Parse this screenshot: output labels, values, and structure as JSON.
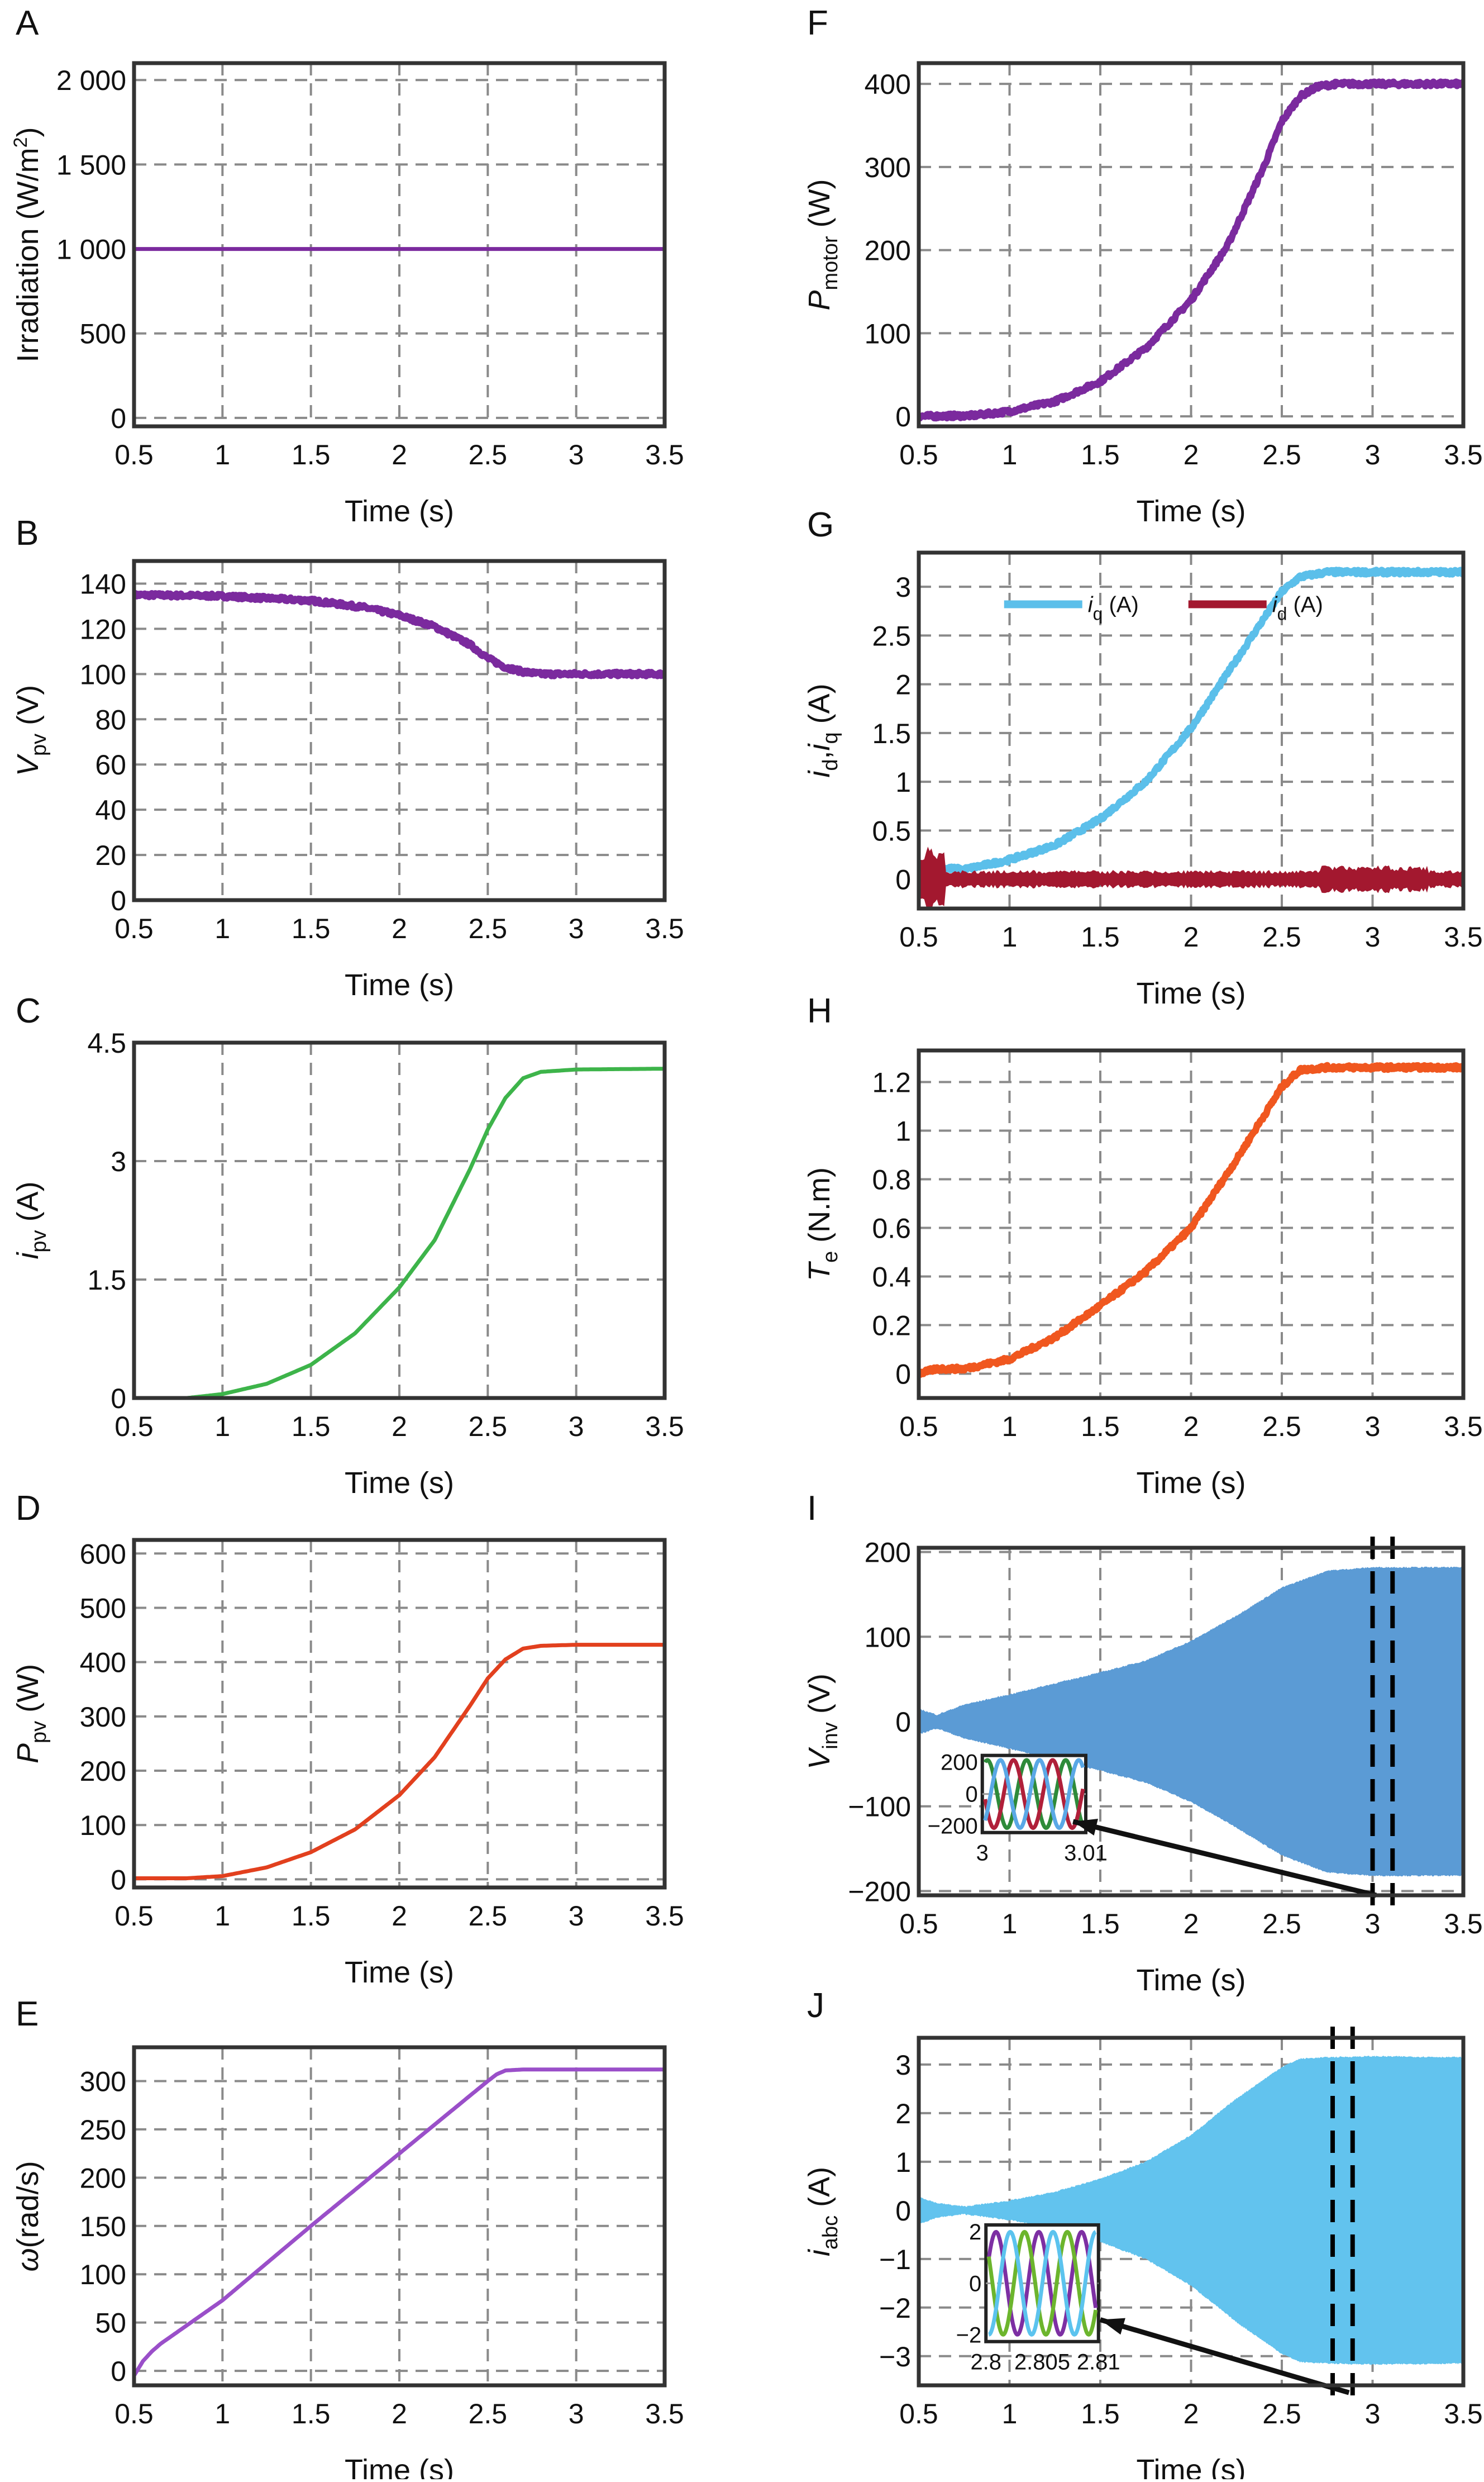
{
  "chart_data": [
    {
      "panel": "A",
      "type": "line",
      "xlim": [
        0.5,
        3.5
      ],
      "ylim": [
        -50,
        2100
      ],
      "grid": true,
      "xticks": [
        0.5,
        1,
        1.5,
        2,
        2.5,
        3,
        3.5
      ],
      "xtick_labels": [
        "0.5",
        "1",
        "1.5",
        "2",
        "2.5",
        "3",
        "3.5"
      ],
      "yticks": [
        0,
        500,
        1000,
        1500,
        2000
      ],
      "ytick_labels": [
        "0",
        "500",
        "1 000",
        "1 500",
        "2 000"
      ],
      "xlabel": "Time (s)",
      "ylabel": [
        {
          "t": "Irradiation (W/m"
        },
        {
          "t": "2",
          "sup": true
        },
        {
          "t": ")"
        }
      ],
      "series": [
        {
          "color": "#7b2a9e",
          "x": [
            0.5,
            3.5
          ],
          "y": [
            1000,
            1000
          ]
        }
      ]
    },
    {
      "panel": "B",
      "type": "line",
      "xlim": [
        0.5,
        3.5
      ],
      "ylim": [
        0,
        150
      ],
      "grid": true,
      "xticks": [
        0.5,
        1,
        1.5,
        2,
        2.5,
        3,
        3.5
      ],
      "xtick_labels": [
        "0.5",
        "1",
        "1.5",
        "2",
        "2.5",
        "3",
        "3.5"
      ],
      "yticks": [
        0,
        20,
        40,
        60,
        80,
        100,
        120,
        140
      ],
      "ytick_labels": [
        "0",
        "20",
        "40",
        "60",
        "80",
        "100",
        "120",
        "140"
      ],
      "xlabel": "Time (s)",
      "ylabel": [
        {
          "t": "V",
          "it": true
        },
        {
          "t": "pv",
          "sub": true
        },
        {
          "t": " (V)"
        }
      ],
      "series": [
        {
          "color": "#7b2a9e",
          "noisy": true,
          "x": [
            0.5,
            1,
            1.5,
            1.8,
            2,
            2.2,
            2.4,
            2.5,
            2.6,
            2.7,
            2.8,
            3,
            3.5
          ],
          "y": [
            135,
            134.5,
            132.5,
            129.5,
            126,
            121,
            113,
            107,
            103,
            101,
            100,
            100,
            100
          ]
        }
      ]
    },
    {
      "panel": "C",
      "type": "line",
      "xlim": [
        0.5,
        3.5
      ],
      "ylim": [
        0,
        4.5
      ],
      "grid": true,
      "xticks": [
        0.5,
        1,
        1.5,
        2,
        2.5,
        3,
        3.5
      ],
      "xtick_labels": [
        "0.5",
        "1",
        "1.5",
        "2",
        "2.5",
        "3",
        "3.5"
      ],
      "yticks": [
        0,
        1.5,
        3,
        4.5
      ],
      "ytick_labels": [
        "0",
        "1.5",
        "3",
        "4.5"
      ],
      "xlabel": "Time (s)",
      "ylabel": [
        {
          "t": "i",
          "it": true
        },
        {
          "t": "pv",
          "sub": true
        },
        {
          "t": " (A)"
        }
      ],
      "series": [
        {
          "color": "#3db44a",
          "x": [
            0.5,
            0.8,
            1,
            1.25,
            1.5,
            1.75,
            2,
            2.2,
            2.4,
            2.5,
            2.6,
            2.7,
            2.8,
            3,
            3.5
          ],
          "y": [
            0,
            0,
            0.05,
            0.18,
            0.42,
            0.82,
            1.4,
            2.0,
            2.9,
            3.4,
            3.8,
            4.05,
            4.13,
            4.16,
            4.17
          ]
        }
      ]
    },
    {
      "panel": "D",
      "type": "line",
      "xlim": [
        0.5,
        3.5
      ],
      "ylim": [
        -15,
        625
      ],
      "grid": true,
      "xticks": [
        0.5,
        1,
        1.5,
        2,
        2.5,
        3,
        3.5
      ],
      "xtick_labels": [
        "0.5",
        "1",
        "1.5",
        "2",
        "2.5",
        "3",
        "3.5"
      ],
      "yticks": [
        0,
        100,
        200,
        300,
        400,
        500,
        600
      ],
      "ytick_labels": [
        "0",
        "100",
        "200",
        "300",
        "400",
        "500",
        "600"
      ],
      "xlabel": "Time (s)",
      "ylabel": [
        {
          "t": "P",
          "it": true
        },
        {
          "t": "pv",
          "sub": true
        },
        {
          "t": " (W)"
        }
      ],
      "series": [
        {
          "color": "#e2401e",
          "x": [
            0.5,
            0.8,
            1,
            1.25,
            1.5,
            1.75,
            2,
            2.2,
            2.4,
            2.5,
            2.6,
            2.7,
            2.8,
            3,
            3.5
          ],
          "y": [
            2,
            2,
            6,
            22,
            50,
            92,
            155,
            225,
            320,
            370,
            405,
            425,
            430,
            432,
            432
          ]
        }
      ]
    },
    {
      "panel": "E",
      "type": "line",
      "xlim": [
        0.5,
        3.5
      ],
      "ylim": [
        -15,
        335
      ],
      "grid": true,
      "xticks": [
        0.5,
        1,
        1.5,
        2,
        2.5,
        3,
        3.5
      ],
      "xtick_labels": [
        "0.5",
        "1",
        "1.5",
        "2",
        "2.5",
        "3",
        "3.5"
      ],
      "yticks": [
        0,
        50,
        100,
        150,
        200,
        250,
        300
      ],
      "ytick_labels": [
        "0",
        "50",
        "100",
        "150",
        "200",
        "250",
        "300"
      ],
      "xlabel": "Time (s)",
      "ylabel": [
        {
          "t": "ω",
          "it": true
        },
        {
          "t": "(rad/s)"
        }
      ],
      "series": [
        {
          "color": "#9a4fc9",
          "x": [
            0.5,
            0.55,
            0.6,
            0.65,
            1,
            1.5,
            2,
            2.5,
            2.55,
            2.6,
            2.7,
            3,
            3.5
          ],
          "y": [
            -5,
            10,
            20,
            28,
            73,
            150,
            225,
            300,
            307,
            311,
            312,
            312,
            312
          ]
        }
      ]
    },
    {
      "panel": "F",
      "type": "line",
      "xlim": [
        0.5,
        3.5
      ],
      "ylim": [
        -12,
        425
      ],
      "grid": true,
      "xticks": [
        0.5,
        1,
        1.5,
        2,
        2.5,
        3,
        3.5
      ],
      "xtick_labels": [
        "0.5",
        "1",
        "1.5",
        "2",
        "2.5",
        "3",
        "3.5"
      ],
      "yticks": [
        0,
        100,
        200,
        300,
        400
      ],
      "ytick_labels": [
        "0",
        "100",
        "200",
        "300",
        "400"
      ],
      "xlabel": "Time (s)",
      "ylabel": [
        {
          "t": "P",
          "it": true
        },
        {
          "t": "motor",
          "sub": true
        },
        {
          "t": " (W)"
        }
      ],
      "series": [
        {
          "color": "#7b2a9e",
          "noisy": true,
          "x": [
            0.5,
            0.8,
            1,
            1.25,
            1.5,
            1.75,
            2,
            2.2,
            2.4,
            2.5,
            2.6,
            2.7,
            2.8,
            3,
            3.5
          ],
          "y": [
            0,
            1,
            6,
            18,
            42,
            82,
            140,
            205,
            300,
            355,
            385,
            397,
            400,
            400,
            400
          ]
        }
      ]
    },
    {
      "panel": "G",
      "type": "line",
      "xlim": [
        0.5,
        3.5
      ],
      "ylim": [
        -0.3,
        3.35
      ],
      "grid": true,
      "xticks": [
        0.5,
        1,
        1.5,
        2,
        2.5,
        3,
        3.5
      ],
      "xtick_labels": [
        "0.5",
        "1",
        "1.5",
        "2",
        "2.5",
        "3",
        "3.5"
      ],
      "yticks": [
        0,
        0.5,
        1,
        1.5,
        2,
        2.5,
        3
      ],
      "ytick_labels": [
        "0",
        "0.5",
        "1",
        "1.5",
        "2",
        "2.5",
        "3"
      ],
      "xlabel": "Time (s)",
      "ylabel": [
        {
          "t": "i",
          "it": true
        },
        {
          "t": "d",
          "sub": true
        },
        {
          "t": ","
        },
        {
          "t": "i",
          "it": true
        },
        {
          "t": "q",
          "sub": true
        },
        {
          "t": " (A)"
        }
      ],
      "legend": {
        "position": "top-left",
        "entries": [
          {
            "label": "i",
            "sub": "q",
            "unit": " (A)",
            "color": "#5bbfea"
          },
          {
            "label": "i",
            "sub": "d",
            "unit": " (A)",
            "color": "#a3182f"
          }
        ]
      },
      "series": [
        {
          "name": "iq (A)",
          "color": "#5bbfea",
          "noisy": true,
          "x": [
            0.5,
            0.6,
            0.75,
            1,
            1.25,
            1.5,
            1.75,
            2,
            2.25,
            2.5,
            2.6,
            2.75,
            3,
            3.5
          ],
          "y": [
            0.15,
            0.12,
            0.1,
            0.2,
            0.35,
            0.62,
            1.0,
            1.55,
            2.25,
            2.95,
            3.1,
            3.15,
            3.15,
            3.15
          ]
        },
        {
          "name": "id (A)",
          "color": "#a3182f",
          "noisy": true,
          "band": 0.08,
          "x": [
            0.5,
            1,
            2,
            2.7,
            3,
            3.5
          ],
          "y": [
            0,
            0,
            0,
            0,
            0,
            0
          ]
        }
      ]
    },
    {
      "panel": "H",
      "type": "line",
      "xlim": [
        0.5,
        3.5
      ],
      "ylim": [
        -0.1,
        1.33
      ],
      "grid": true,
      "xticks": [
        0.5,
        1,
        1.5,
        2,
        2.5,
        3,
        3.5
      ],
      "xtick_labels": [
        "0.5",
        "1",
        "1.5",
        "2",
        "2.5",
        "3",
        "3.5"
      ],
      "yticks": [
        0,
        0.2,
        0.4,
        0.6,
        0.8,
        1,
        1.2
      ],
      "ytick_labels": [
        "0",
        "0.2",
        "0.4",
        "0.6",
        "0.8",
        "1",
        "1.2"
      ],
      "xlabel": "Time (s)",
      "ylabel": [
        {
          "t": "T",
          "it": true
        },
        {
          "t": "e",
          "sub": true
        },
        {
          "t": " (N.m)"
        }
      ],
      "series": [
        {
          "color": "#f0571f",
          "noisy": true,
          "x": [
            0.5,
            0.6,
            0.75,
            1,
            1.25,
            1.5,
            1.75,
            2,
            2.25,
            2.5,
            2.6,
            2.75,
            3,
            3.5
          ],
          "y": [
            0,
            0.02,
            0.02,
            0.06,
            0.15,
            0.28,
            0.42,
            0.6,
            0.88,
            1.18,
            1.25,
            1.26,
            1.26,
            1.26
          ]
        }
      ]
    },
    {
      "panel": "I",
      "type": "area",
      "xlim": [
        0.5,
        3.5
      ],
      "ylim": [
        -205,
        205
      ],
      "grid": true,
      "xticks": [
        0.5,
        1,
        1.5,
        2,
        2.5,
        3,
        3.5
      ],
      "xtick_labels": [
        "0.5",
        "1",
        "1.5",
        "2",
        "2.5",
        "3",
        "3.5"
      ],
      "yticks": [
        -200,
        -100,
        0,
        100,
        200
      ],
      "ytick_labels": [
        "−200",
        "−100",
        "0",
        "100",
        "200"
      ],
      "xlabel": "Time (s)",
      "ylabel": [
        {
          "t": "V",
          "it": true
        },
        {
          "t": "inv",
          "sub": true
        },
        {
          "t": " (V)"
        }
      ],
      "envelope": {
        "color": "#5b9bd5",
        "x": [
          0.5,
          0.6,
          0.75,
          1,
          1.25,
          1.5,
          1.75,
          2,
          2.25,
          2.5,
          2.75,
          3,
          3.5
        ],
        "amplitude": [
          15,
          8,
          20,
          32,
          45,
          58,
          72,
          95,
          125,
          158,
          178,
          182,
          182
        ]
      },
      "zoom_window": [
        3.0,
        3.01
      ],
      "inset": {
        "xtick_labels": [
          "3",
          "3.01"
        ],
        "ytick_labels": [
          "200",
          "0",
          "−200"
        ],
        "colors": [
          "#2e8b3a",
          "#b0203a",
          "#5aa8e6"
        ]
      }
    },
    {
      "panel": "J",
      "type": "area",
      "xlim": [
        0.5,
        3.5
      ],
      "ylim": [
        -3.6,
        3.55
      ],
      "grid": true,
      "xticks": [
        0.5,
        1,
        1.5,
        2,
        2.5,
        3,
        3.5
      ],
      "xtick_labels": [
        "0.5",
        "1",
        "1.5",
        "2",
        "2.5",
        "3",
        "3.5"
      ],
      "yticks": [
        -3,
        -2,
        -1,
        0,
        1,
        2,
        3
      ],
      "ytick_labels": [
        "−3",
        "−2",
        "−1",
        "0",
        "1",
        "2",
        "3"
      ],
      "xlabel": "Time (s)",
      "ylabel": [
        {
          "t": "i",
          "it": true
        },
        {
          "t": "abc",
          "sub": true
        },
        {
          "t": " (A)"
        }
      ],
      "envelope": {
        "color": "#62c3ee",
        "x": [
          0.5,
          0.6,
          0.75,
          1,
          1.25,
          1.5,
          1.75,
          2,
          2.25,
          2.5,
          2.6,
          2.75,
          3,
          3.5
        ],
        "amplitude": [
          0.28,
          0.15,
          0.08,
          0.2,
          0.38,
          0.65,
          1.0,
          1.55,
          2.3,
          2.95,
          3.12,
          3.15,
          3.17,
          3.15
        ]
      },
      "zoom_window": [
        2.8,
        2.81
      ],
      "inset": {
        "xtick_labels": [
          "2.8",
          "2.805",
          "2.81"
        ],
        "ytick_labels": [
          "2",
          "0",
          "−2"
        ],
        "colors": [
          "#7d2fa3",
          "#6cb52d",
          "#5cc3ee"
        ]
      }
    }
  ]
}
